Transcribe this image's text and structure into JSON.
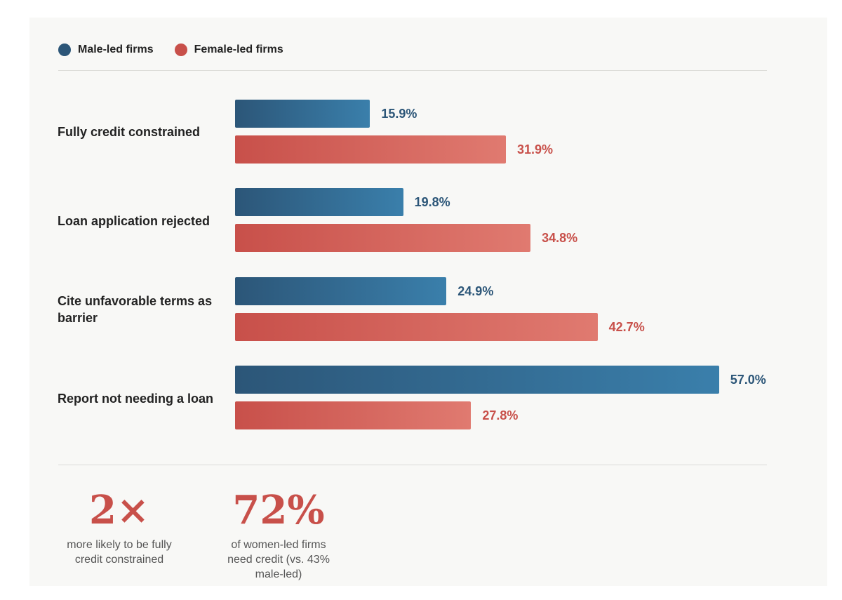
{
  "colors": {
    "male": "#2c5678",
    "female": "#c8504a"
  },
  "legend": [
    {
      "name": "Male-led firms",
      "color": "#2c5678"
    },
    {
      "name": "Female-led firms",
      "color": "#c8504a"
    }
  ],
  "chart_data": {
    "type": "bar",
    "orientation": "horizontal",
    "categories": [
      "Fully credit constrained",
      "Loan application rejected",
      "Cite unfavorable terms as barrier",
      "Report not needing a loan"
    ],
    "series": [
      {
        "name": "Male-led firms",
        "values": [
          15.9,
          19.8,
          24.9,
          57.0
        ],
        "labels": [
          "15.9%",
          "19.8%",
          "24.9%",
          "57.0%"
        ]
      },
      {
        "name": "Female-led firms",
        "values": [
          31.9,
          34.8,
          42.7,
          27.8
        ],
        "labels": [
          "31.9%",
          "34.8%",
          "42.7%",
          "27.8%"
        ]
      }
    ],
    "xlim": [
      0,
      60
    ],
    "unit": "%",
    "grid": false,
    "legend_position": "top-left"
  },
  "stats": [
    {
      "number": "2×",
      "text": "more likely to be fully credit constrained"
    },
    {
      "number": "72%",
      "text": "of women-led firms need credit (vs. 43% male-led)"
    }
  ]
}
